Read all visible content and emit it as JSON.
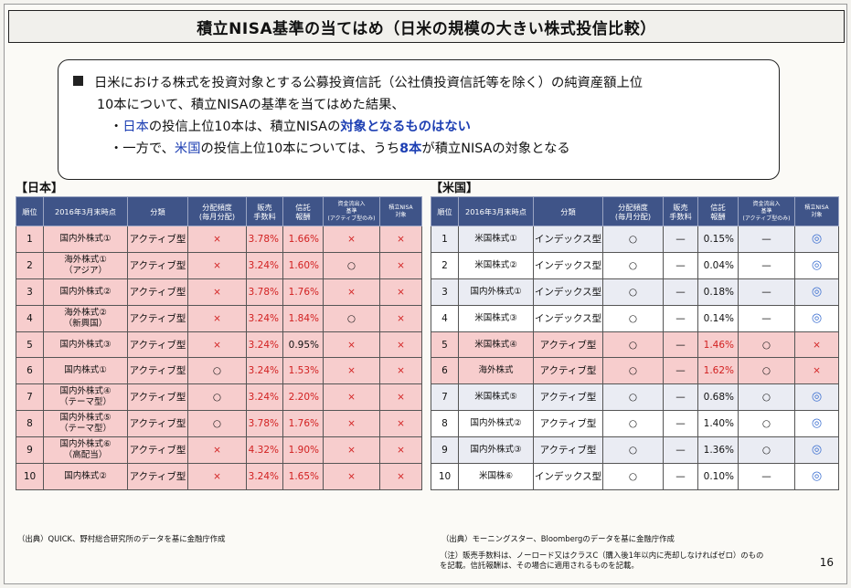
{
  "title": "積立NISA基準の当てはめ（日米の規模の大きい株式投信比較）",
  "summary": {
    "line1": "日米における株式を投資対象とする公募投資信託（公社債投資信託等を除く）の純資産額上位",
    "line2": "10本について、積立NISAの基準を当てはめた結果、",
    "bullet1": {
      "prefix": "・",
      "country": "日本",
      "middle": "の投信上位10本は、積立NISAの",
      "highlight": "対象となるものはない"
    },
    "bullet2": {
      "prefix": "・一方で、",
      "country": "米国",
      "middle": "の投信上位10本については、うち",
      "count": "8本",
      "suffix": "が積立NISAの対象となる"
    }
  },
  "japan": {
    "label": "【日本】",
    "headers": [
      "順位",
      "2016年3月末時点",
      "分類",
      "分配頻度\n(毎月分配)",
      "販売\n手数料",
      "信託\n報酬",
      "資金流出入\n基準\n(アクティブ型のみ)",
      "積立NISA\n対象"
    ],
    "rows": [
      {
        "rank": "1",
        "name": "国内外株式①",
        "type": "アクティブ型",
        "freq": "×",
        "fee": "3.78%",
        "trust": "1.66%",
        "flow": "×",
        "nisa": "×"
      },
      {
        "rank": "2",
        "name": "海外株式①\n（アジア）",
        "type": "アクティブ型",
        "freq": "×",
        "fee": "3.24%",
        "trust": "1.60%",
        "flow": "○",
        "nisa": "×"
      },
      {
        "rank": "3",
        "name": "国内外株式②",
        "type": "アクティブ型",
        "freq": "×",
        "fee": "3.78%",
        "trust": "1.76%",
        "flow": "×",
        "nisa": "×"
      },
      {
        "rank": "4",
        "name": "海外株式②\n（新興国）",
        "type": "アクティブ型",
        "freq": "×",
        "fee": "3.24%",
        "trust": "1.84%",
        "flow": "○",
        "nisa": "×"
      },
      {
        "rank": "5",
        "name": "国内外株式③",
        "type": "アクティブ型",
        "freq": "×",
        "fee": "3.24%",
        "trust": "0.95%",
        "flow": "×",
        "nisa": "×"
      },
      {
        "rank": "6",
        "name": "国内株式①",
        "type": "アクティブ型",
        "freq": "○",
        "fee": "3.24%",
        "trust": "1.53%",
        "flow": "×",
        "nisa": "×"
      },
      {
        "rank": "7",
        "name": "国内外株式④\n（テーマ型）",
        "type": "アクティブ型",
        "freq": "○",
        "fee": "3.24%",
        "trust": "2.20%",
        "flow": "×",
        "nisa": "×"
      },
      {
        "rank": "8",
        "name": "国内外株式⑤\n（テーマ型）",
        "type": "アクティブ型",
        "freq": "○",
        "fee": "3.78%",
        "trust": "1.76%",
        "flow": "×",
        "nisa": "×"
      },
      {
        "rank": "9",
        "name": "国内外株式⑥\n（高配当）",
        "type": "アクティブ型",
        "freq": "×",
        "fee": "4.32%",
        "trust": "1.90%",
        "flow": "×",
        "nisa": "×"
      },
      {
        "rank": "10",
        "name": "国内株式②",
        "type": "アクティブ型",
        "freq": "×",
        "fee": "3.24%",
        "trust": "1.65%",
        "flow": "×",
        "nisa": "×"
      }
    ],
    "source": "（出典）QUICK、野村総合研究所のデータを基に金融庁作成"
  },
  "us": {
    "label": "【米国】",
    "headers": [
      "順位",
      "2016年3月末時点",
      "分類",
      "分配頻度\n(毎月分配)",
      "販売\n手数料",
      "信託\n報酬",
      "資金流出入\n基準\n(アクティブ型のみ)",
      "積立NISA\n対象"
    ],
    "rows": [
      {
        "rank": "1",
        "name": "米国株式①",
        "type": "インデックス型",
        "freq": "○",
        "fee": "—",
        "trust": "0.15%",
        "flow": "—",
        "nisa": "◎",
        "hl": false
      },
      {
        "rank": "2",
        "name": "米国株式②",
        "type": "インデックス型",
        "freq": "○",
        "fee": "—",
        "trust": "0.04%",
        "flow": "—",
        "nisa": "◎",
        "hl": false
      },
      {
        "rank": "3",
        "name": "国内外株式①",
        "type": "インデックス型",
        "freq": "○",
        "fee": "—",
        "trust": "0.18%",
        "flow": "—",
        "nisa": "◎",
        "hl": false
      },
      {
        "rank": "4",
        "name": "米国株式③",
        "type": "インデックス型",
        "freq": "○",
        "fee": "—",
        "trust": "0.14%",
        "flow": "—",
        "nisa": "◎",
        "hl": false
      },
      {
        "rank": "5",
        "name": "米国株式④",
        "type": "アクティブ型",
        "freq": "○",
        "fee": "—",
        "trust": "1.46%",
        "flow": "○",
        "nisa": "×",
        "hl": true
      },
      {
        "rank": "6",
        "name": "海外株式",
        "type": "アクティブ型",
        "freq": "○",
        "fee": "—",
        "trust": "1.62%",
        "flow": "○",
        "nisa": "×",
        "hl": true
      },
      {
        "rank": "7",
        "name": "米国株式⑤",
        "type": "アクティブ型",
        "freq": "○",
        "fee": "—",
        "trust": "0.68%",
        "flow": "○",
        "nisa": "◎",
        "hl": false
      },
      {
        "rank": "8",
        "name": "国内外株式②",
        "type": "アクティブ型",
        "freq": "○",
        "fee": "—",
        "trust": "1.40%",
        "flow": "○",
        "nisa": "◎",
        "hl": false
      },
      {
        "rank": "9",
        "name": "国内外株式③",
        "type": "アクティブ型",
        "freq": "○",
        "fee": "—",
        "trust": "1.36%",
        "flow": "○",
        "nisa": "◎",
        "hl": false
      },
      {
        "rank": "10",
        "name": "米国株⑥",
        "type": "インデックス型",
        "freq": "○",
        "fee": "—",
        "trust": "0.10%",
        "flow": "—",
        "nisa": "◎",
        "hl": false
      }
    ],
    "source": "（出典）モーニングスター、Bloombergのデータを基に金融庁作成"
  },
  "note": "（注）販売手数料は、ノーロード又はクラスC（購入後1年以内に売却しなければゼロ）のもの\nを記載。信託報酬は、その場合に適用されるものを記載。",
  "page_number": "16",
  "colors": {
    "header_bg": "#3f5488",
    "highlight_row": "#f7cdcd",
    "red_text": "#d22020",
    "blue_text": "#1d3fb3"
  }
}
